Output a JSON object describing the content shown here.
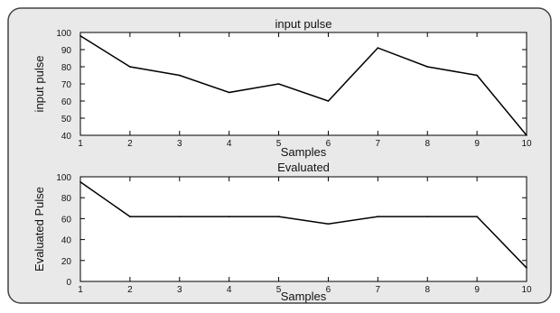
{
  "colors": {
    "panel_background": "#e9e9e9",
    "panel_border": "#444444",
    "plot_background": "#ffffff",
    "axis": "#000000",
    "series_line": "#000000"
  },
  "chart_data": [
    {
      "type": "line",
      "title": "input pulse",
      "xlabel": "Samples",
      "ylabel": "input pulse",
      "x": [
        1,
        2,
        3,
        4,
        5,
        6,
        7,
        8,
        9,
        10
      ],
      "xlim": [
        1,
        10
      ],
      "ylim": [
        40,
        100
      ],
      "xticks": [
        1,
        2,
        3,
        4,
        5,
        6,
        7,
        8,
        9,
        10
      ],
      "yticks": [
        40,
        50,
        60,
        70,
        80,
        90,
        100
      ],
      "grid": false,
      "legend": "none",
      "series": [
        {
          "values": [
            98,
            80,
            75,
            65,
            70,
            60,
            91,
            80,
            75,
            40
          ]
        }
      ]
    },
    {
      "type": "line",
      "title": "Evaluated",
      "xlabel": "Samples",
      "ylabel": "Evaluated Pulse",
      "x": [
        1,
        2,
        3,
        4,
        5,
        6,
        7,
        8,
        9,
        10
      ],
      "xlim": [
        1,
        10
      ],
      "ylim": [
        0,
        100
      ],
      "xticks": [
        1,
        2,
        3,
        4,
        5,
        6,
        7,
        8,
        9,
        10
      ],
      "yticks": [
        0,
        20,
        40,
        60,
        80,
        100
      ],
      "grid": false,
      "legend": "none",
      "series": [
        {
          "values": [
            95,
            62,
            62,
            62,
            62,
            55,
            62,
            62,
            62,
            13
          ]
        }
      ]
    }
  ]
}
